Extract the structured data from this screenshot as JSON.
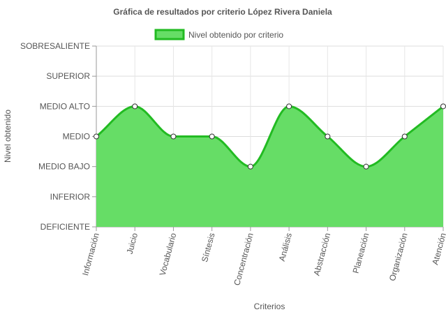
{
  "chart_data": {
    "type": "area",
    "title": "Gráfica de resultados por criterio López Rivera Daniela",
    "xlabel": "Criterios",
    "ylabel": "Nivel obtenido",
    "legend": {
      "position": "top-center"
    },
    "y_levels": [
      "DEFICIENTE",
      "INFERIOR",
      "MEDIO BAJO",
      "MEDIO",
      "MEDIO ALTO",
      "SUPERIOR",
      "SOBRESALIENTE"
    ],
    "ylim": [
      0,
      6
    ],
    "grid": true,
    "categories": [
      "Información",
      "Juicio",
      "Vocabulario",
      "Síntesis",
      "Concentración",
      "Análisis",
      "Abstracción",
      "Planeación",
      "Organización",
      "Atención"
    ],
    "series": [
      {
        "name": "Nivel obtenido por criterio",
        "values": [
          3,
          4,
          3,
          3,
          2,
          4,
          3,
          2,
          3,
          4
        ],
        "fill_color": "#66dd66",
        "line_color": "#22bb22"
      }
    ]
  }
}
